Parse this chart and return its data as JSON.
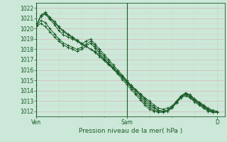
{
  "title": "Pression niveau de la mer( hPa )",
  "bg_color": "#cce8d8",
  "plot_bg_color": "#cce8d8",
  "grid_color_major": "#b8d8c8",
  "grid_color_minor": "#c8e4d4",
  "line_color": "#1a5c28",
  "xlim": [
    0,
    50
  ],
  "ylim": [
    1011.5,
    1022.5
  ],
  "yticks": [
    1012,
    1013,
    1014,
    1015,
    1016,
    1017,
    1018,
    1019,
    1020,
    1021,
    1022
  ],
  "xtick_positions": [
    0,
    24,
    48
  ],
  "xtick_labels": [
    "Ven",
    "Sam",
    "D"
  ],
  "series": [
    [
      1020.3,
      1021.2,
      1021.5,
      1021.0,
      1020.6,
      1020.1,
      1019.7,
      1019.4,
      1019.1,
      1018.8,
      1018.5,
      1018.3,
      1018.0,
      1017.8,
      1017.4,
      1017.0,
      1016.6,
      1016.2,
      1015.8,
      1015.4,
      1014.9,
      1014.5,
      1014.1,
      1013.7,
      1013.3,
      1013.0,
      1012.6,
      1012.3,
      1012.2,
      1012.3,
      1012.5,
      1013.0,
      1013.5,
      1013.8,
      1013.6,
      1013.2,
      1012.9,
      1012.6,
      1012.3,
      1012.1,
      1012.0
    ],
    [
      1020.3,
      1021.3,
      1021.6,
      1021.1,
      1020.7,
      1020.2,
      1019.8,
      1019.5,
      1019.2,
      1018.9,
      1018.6,
      1018.3,
      1018.0,
      1017.7,
      1017.3,
      1016.9,
      1016.5,
      1016.1,
      1015.7,
      1015.3,
      1014.8,
      1014.4,
      1014.0,
      1013.6,
      1013.2,
      1012.8,
      1012.4,
      1012.1,
      1012.0,
      1012.1,
      1012.4,
      1012.9,
      1013.4,
      1013.7,
      1013.5,
      1013.1,
      1012.8,
      1012.5,
      1012.2,
      1012.0,
      1011.9
    ],
    [
      1020.3,
      1021.2,
      1021.4,
      1020.9,
      1020.4,
      1019.8,
      1019.4,
      1019.2,
      1019.0,
      1018.8,
      1018.5,
      1018.8,
      1019.0,
      1018.5,
      1018.0,
      1017.5,
      1017.0,
      1016.5,
      1016.0,
      1015.5,
      1015.0,
      1014.5,
      1014.0,
      1013.5,
      1013.0,
      1012.6,
      1012.3,
      1012.1,
      1012.0,
      1012.1,
      1012.4,
      1012.9,
      1013.4,
      1013.7,
      1013.5,
      1013.1,
      1012.8,
      1012.5,
      1012.2,
      1012.0,
      1011.9
    ],
    [
      1020.2,
      1020.8,
      1020.6,
      1020.0,
      1019.5,
      1019.0,
      1018.6,
      1018.4,
      1018.2,
      1018.0,
      1018.2,
      1018.5,
      1018.8,
      1018.3,
      1017.8,
      1017.3,
      1016.8,
      1016.3,
      1015.8,
      1015.3,
      1014.8,
      1014.3,
      1013.8,
      1013.3,
      1012.8,
      1012.4,
      1012.1,
      1012.0,
      1012.0,
      1012.1,
      1012.4,
      1012.9,
      1013.4,
      1013.6,
      1013.4,
      1013.0,
      1012.7,
      1012.4,
      1012.1,
      1011.9,
      1011.9
    ],
    [
      1020.2,
      1020.5,
      1020.2,
      1019.7,
      1019.2,
      1018.8,
      1018.4,
      1018.2,
      1018.0,
      1017.8,
      1018.0,
      1018.3,
      1018.6,
      1018.1,
      1017.6,
      1017.1,
      1016.6,
      1016.1,
      1015.6,
      1015.1,
      1014.6,
      1014.1,
      1013.6,
      1013.1,
      1012.6,
      1012.2,
      1012.0,
      1011.9,
      1011.9,
      1012.0,
      1012.3,
      1012.8,
      1013.3,
      1013.5,
      1013.3,
      1012.9,
      1012.6,
      1012.3,
      1012.0,
      1011.9,
      1011.9
    ]
  ]
}
